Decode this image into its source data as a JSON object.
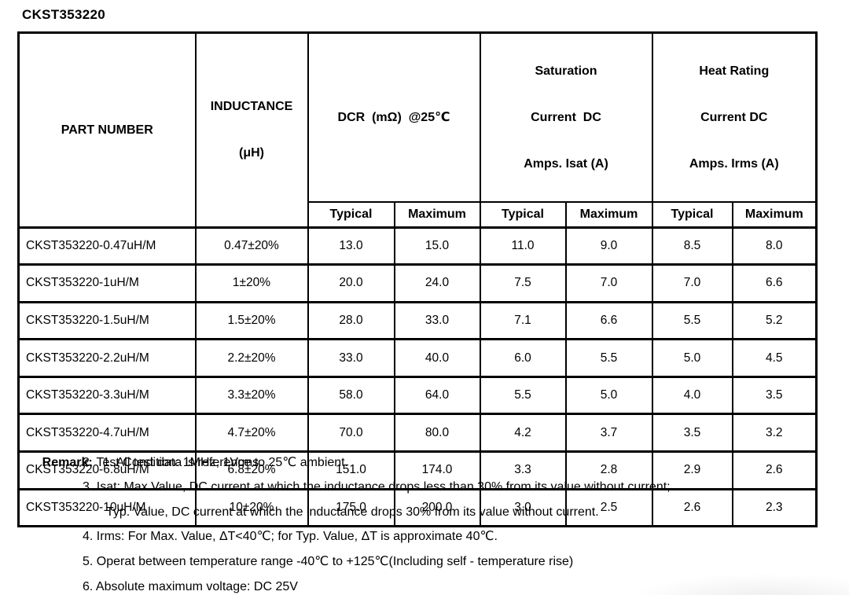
{
  "title": "CKST353220",
  "table": {
    "headers": {
      "part_number": "PART NUMBER",
      "inductance": [
        "INDUCTANCE",
        "(μH)"
      ],
      "dcr": "DCR  (mΩ)  @25℃",
      "saturation": [
        "Saturation",
        "Current  DC",
        "Amps. Isat (A)"
      ],
      "heat_rating": [
        "Heat Rating",
        "Current DC",
        "Amps. Irms (A)"
      ],
      "typical": "Typical",
      "maximum": "Maximum"
    },
    "rows": [
      [
        "CKST353220-0.47uH/M",
        "0.47±20%",
        "13.0",
        "15.0",
        "11.0",
        "9.0",
        "8.5",
        "8.0"
      ],
      [
        "CKST353220-1uH/M",
        "1±20%",
        "20.0",
        "24.0",
        "7.5",
        "7.0",
        "7.0",
        "6.6"
      ],
      [
        "CKST353220-1.5uH/M",
        "1.5±20%",
        "28.0",
        "33.0",
        "7.1",
        "6.6",
        "5.5",
        "5.2"
      ],
      [
        "CKST353220-2.2uH/M",
        "2.2±20%",
        "33.0",
        "40.0",
        "6.0",
        "5.5",
        "5.0",
        "4.5"
      ],
      [
        "CKST353220-3.3uH/M",
        "3.3±20%",
        "58.0",
        "64.0",
        "5.5",
        "5.0",
        "4.0",
        "3.5"
      ],
      [
        "CKST353220-4.7uH/M",
        "4.7±20%",
        "70.0",
        "80.0",
        "4.2",
        "3.7",
        "3.5",
        "3.2"
      ],
      [
        "CKST353220-6.8uH/M",
        "6.8±20%",
        "151.0",
        "174.0",
        "3.3",
        "2.8",
        "2.9",
        "2.6"
      ],
      [
        "CKST353220-10uH/M",
        "10±20%",
        "175.0",
        "200.0",
        "3.0",
        "2.5",
        "2.6",
        "2.3"
      ]
    ]
  },
  "remarks": {
    "label": "Remark:",
    "lines": [
      "1. All test data is reference to 25℃ ambient.",
      "2. Test Condition: 1MHz, 1Vrms",
      "3. Isat: Max.Value, DC current at which the inductance drops less than 30% from its value without current;",
      "Typ. Value, DC current at which the inductance drops 30% from its value without current.",
      "4. Irms: For Max. Value, ΔT<40℃; for Typ. Value, ΔT is approximate 40℃.",
      "5. Operat between temperature range -40℃ to +125℃(Including self - temperature rise)",
      "6. Absolute maximum voltage: DC 25V"
    ]
  }
}
